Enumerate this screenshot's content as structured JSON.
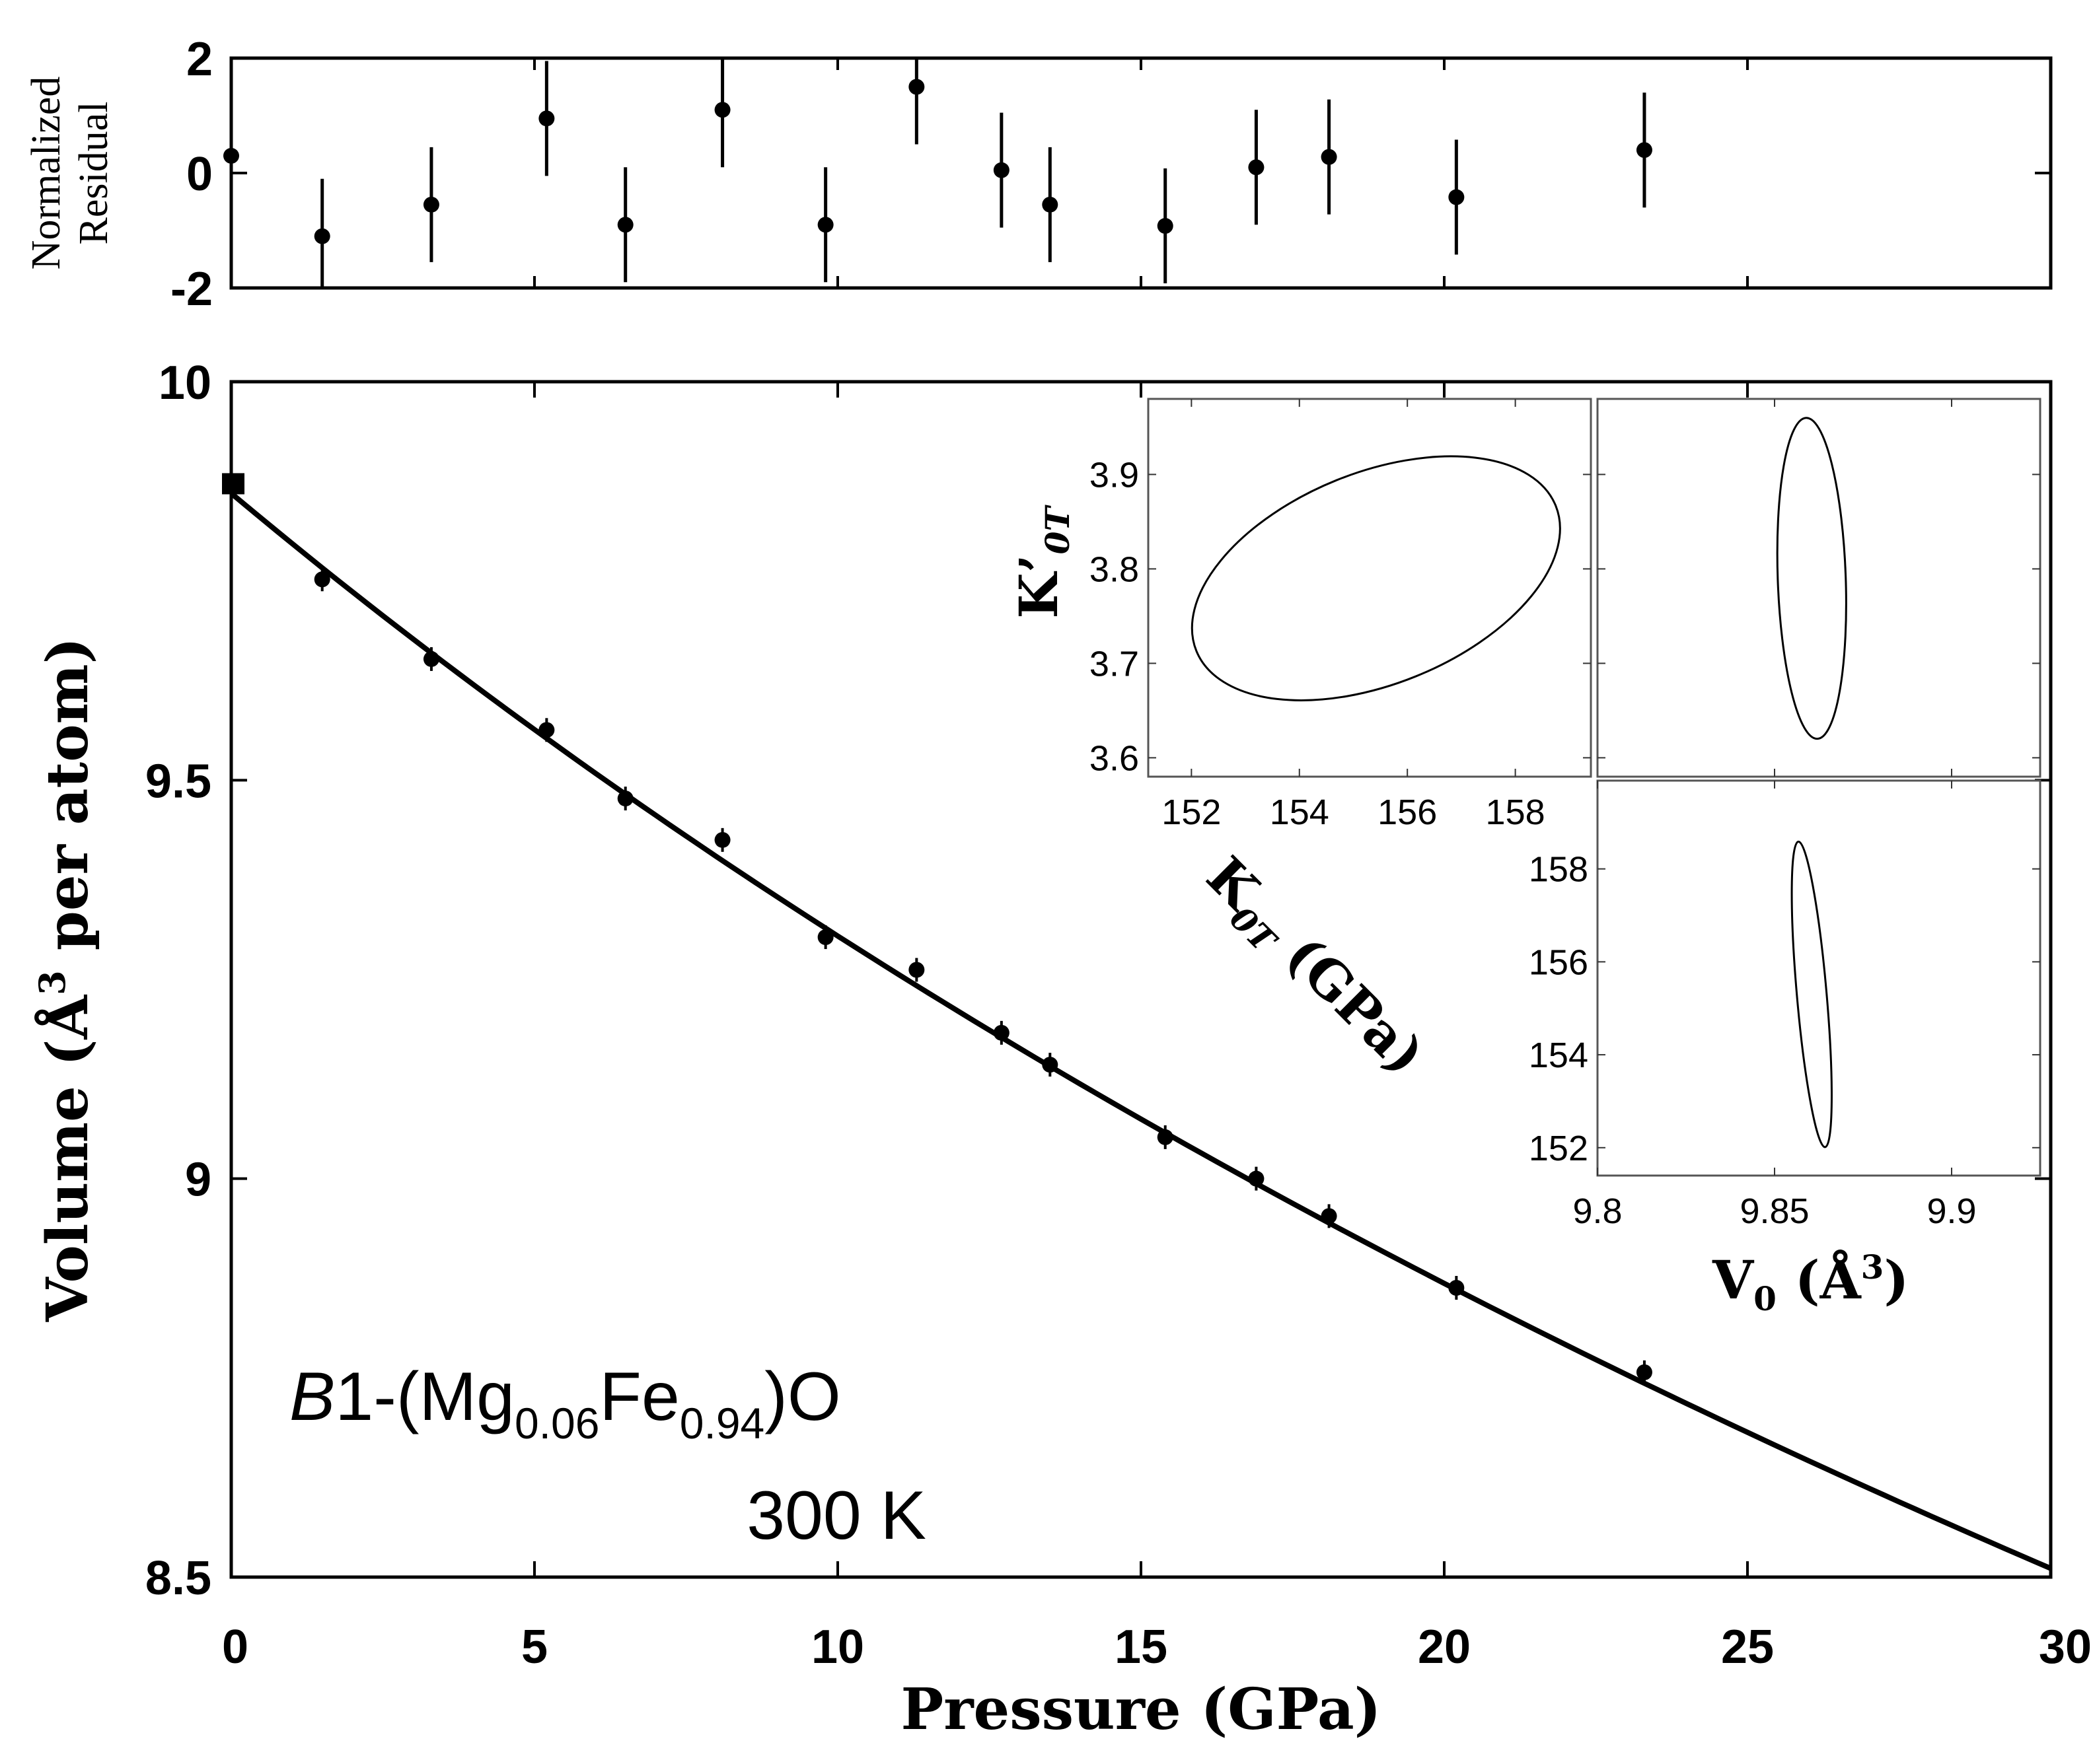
{
  "chart_data": [
    {
      "id": "residual",
      "type": "scatter",
      "ylabel_lines": [
        "Normalized",
        "Residual"
      ],
      "xlim": [
        0,
        30
      ],
      "ylim": [
        -2,
        2
      ],
      "yticks": [
        2,
        0,
        -2
      ],
      "yticklabels": [
        "2",
        "0",
        "-2"
      ],
      "points": [
        {
          "x": 0.0,
          "y": 0.3,
          "err": 0.9
        },
        {
          "x": 1.5,
          "y": -1.1,
          "err": 1.0
        },
        {
          "x": 3.3,
          "y": -0.55,
          "err": 1.0
        },
        {
          "x": 5.2,
          "y": 0.95,
          "err": 1.0
        },
        {
          "x": 6.5,
          "y": -0.9,
          "err": 1.0
        },
        {
          "x": 8.1,
          "y": 1.1,
          "err": 1.0
        },
        {
          "x": 9.8,
          "y": -0.9,
          "err": 1.0
        },
        {
          "x": 11.3,
          "y": 1.5,
          "err": 1.0
        },
        {
          "x": 12.7,
          "y": 0.05,
          "err": 1.0
        },
        {
          "x": 13.5,
          "y": -0.55,
          "err": 1.0
        },
        {
          "x": 15.4,
          "y": -0.92,
          "err": 1.0
        },
        {
          "x": 16.9,
          "y": 0.1,
          "err": 1.0
        },
        {
          "x": 18.1,
          "y": 0.28,
          "err": 1.0
        },
        {
          "x": 20.2,
          "y": -0.42,
          "err": 1.0
        },
        {
          "x": 23.3,
          "y": 0.4,
          "err": 1.0
        }
      ]
    },
    {
      "id": "main",
      "type": "scatter",
      "title": "",
      "xlabel": "Pressure (GPa)",
      "ylabel_parts": {
        "pre": "Volume (Å",
        "sup": "3",
        "post": " per atom)"
      },
      "xlim": [
        0,
        30
      ],
      "ylim": [
        8.5,
        10
      ],
      "xticks": [
        0,
        5,
        10,
        15,
        20,
        25,
        30
      ],
      "xticklabels": [
        "0",
        "5",
        "10",
        "15",
        "20",
        "25",
        "30"
      ],
      "yticks": [
        10,
        9.5,
        9,
        8.5
      ],
      "yticklabels": [
        "10",
        "9.5",
        "9",
        "8.5"
      ],
      "points": [
        {
          "x": 0.0,
          "y": 9.872,
          "marker": "square"
        },
        {
          "x": 1.5,
          "y": 9.752,
          "marker": "circle"
        },
        {
          "x": 3.3,
          "y": 9.652,
          "marker": "circle"
        },
        {
          "x": 5.2,
          "y": 9.563,
          "marker": "circle"
        },
        {
          "x": 6.5,
          "y": 9.477,
          "marker": "circle"
        },
        {
          "x": 8.1,
          "y": 9.425,
          "marker": "circle"
        },
        {
          "x": 9.8,
          "y": 9.303,
          "marker": "circle"
        },
        {
          "x": 11.3,
          "y": 9.262,
          "marker": "circle"
        },
        {
          "x": 12.7,
          "y": 9.183,
          "marker": "circle"
        },
        {
          "x": 13.5,
          "y": 9.143,
          "marker": "circle"
        },
        {
          "x": 15.4,
          "y": 9.052,
          "marker": "circle"
        },
        {
          "x": 16.9,
          "y": 9.0,
          "marker": "circle"
        },
        {
          "x": 18.1,
          "y": 8.953,
          "marker": "circle"
        },
        {
          "x": 20.2,
          "y": 8.863,
          "marker": "circle"
        },
        {
          "x": 23.3,
          "y": 8.757,
          "marker": "circle"
        }
      ],
      "fit": {
        "type": "Birch-Murnaghan EOS",
        "V0": 9.86,
        "K0T": 154.6,
        "Kp": 3.77
      },
      "annotation": {
        "formula_italic": "B",
        "formula_pre": "1-(Mg",
        "sub1": "0.06",
        "mid": "Fe",
        "sub2": "0.94",
        "post": ")O",
        "temperature": "300 K"
      }
    },
    {
      "id": "inset_k_kp",
      "type": "line",
      "description_type": "confidence-ellipse",
      "xlim": [
        151.2,
        159.4
      ],
      "ylim": [
        3.58,
        3.98
      ],
      "xticks": [
        152,
        154,
        156,
        158
      ],
      "xticklabels": [
        "152",
        "154",
        "156",
        "158"
      ],
      "yticks": [
        3.9,
        3.8,
        3.7,
        3.6
      ],
      "yticklabels": [
        "3.9",
        "3.8",
        "3.7",
        "3.6"
      ],
      "xlabel": {
        "main": "K",
        "sub": "0T",
        "unit": " (GPa)"
      },
      "ylabel": {
        "main": "K’",
        "sub": "0T"
      },
      "ellipse": {
        "cx": 155.42,
        "cy": 3.79,
        "rx": 3.59,
        "ry": 0.112,
        "angle": -22
      }
    },
    {
      "id": "inset_v_kp",
      "type": "line",
      "description_type": "confidence-ellipse",
      "xlim": [
        9.8,
        9.925
      ],
      "ylim": [
        3.58,
        3.98
      ],
      "ellipse": {
        "cx": 9.8605,
        "cy": 3.79,
        "rx": 0.0096,
        "ry": 0.17,
        "angle": -2
      }
    },
    {
      "id": "inset_v_k",
      "type": "line",
      "description_type": "confidence-ellipse",
      "xlim": [
        9.8,
        9.925
      ],
      "ylim": [
        151.4,
        159.9
      ],
      "xticks": [
        9.8,
        9.85,
        9.9
      ],
      "xticklabels": [
        "9.8",
        "9.85",
        "9.9"
      ],
      "yticks": [
        158,
        156,
        154,
        152
      ],
      "yticklabels": [
        "158",
        "156",
        "154",
        "152"
      ],
      "xlabel": {
        "main": "V",
        "sub": "0",
        "unit_pre": "  (Å",
        "unit_sup": "3",
        "unit_post": ")"
      },
      "ellipse": {
        "cx": 9.8605,
        "cy": 155.3,
        "rx": 0.0042,
        "ry": 3.3,
        "angle": -5
      }
    }
  ]
}
